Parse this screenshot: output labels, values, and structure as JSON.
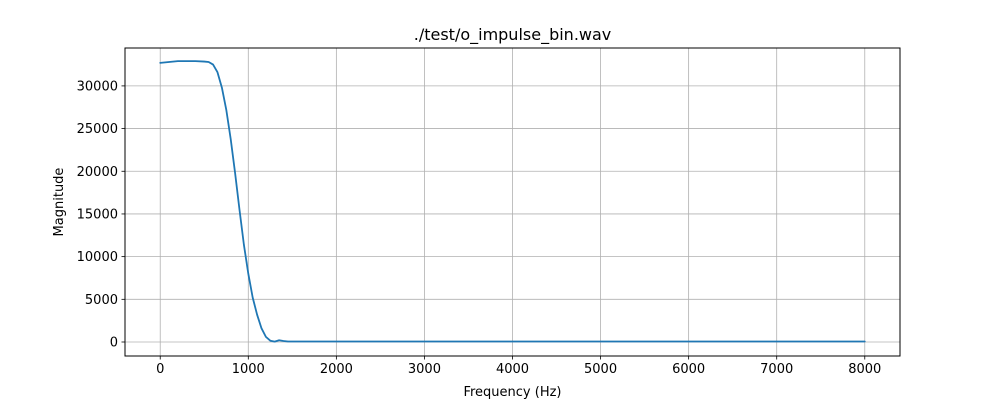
{
  "chart_data": {
    "type": "line",
    "title": "./test/o_impulse_bin.wav",
    "xlabel": "Frequency (Hz)",
    "ylabel": "Magnitude",
    "xlim": [
      -400,
      8400
    ],
    "ylim": [
      -1640,
      34440
    ],
    "xticks": [
      0,
      1000,
      2000,
      3000,
      4000,
      5000,
      6000,
      7000,
      8000
    ],
    "yticks": [
      0,
      5000,
      10000,
      15000,
      20000,
      25000,
      30000
    ],
    "grid": true,
    "line_color": "#1f77b4",
    "grid_color": "#b0b0b0",
    "series": [
      {
        "x": [
          0,
          100,
          200,
          300,
          400,
          500,
          550,
          600,
          650,
          700,
          750,
          800,
          850,
          900,
          950,
          1000,
          1050,
          1100,
          1150,
          1200,
          1250,
          1300,
          1350,
          1400,
          1450,
          1500,
          1600,
          1700,
          1800,
          2000,
          3000,
          4000,
          5000,
          6000,
          7000,
          8000
        ],
        "y": [
          32700,
          32800,
          32900,
          32900,
          32900,
          32850,
          32800,
          32500,
          31600,
          29800,
          27200,
          23800,
          19800,
          15500,
          11400,
          8000,
          5200,
          3200,
          1600,
          600,
          150,
          40,
          200,
          120,
          60,
          60,
          60,
          60,
          60,
          60,
          60,
          60,
          60,
          60,
          60,
          60
        ]
      }
    ]
  }
}
